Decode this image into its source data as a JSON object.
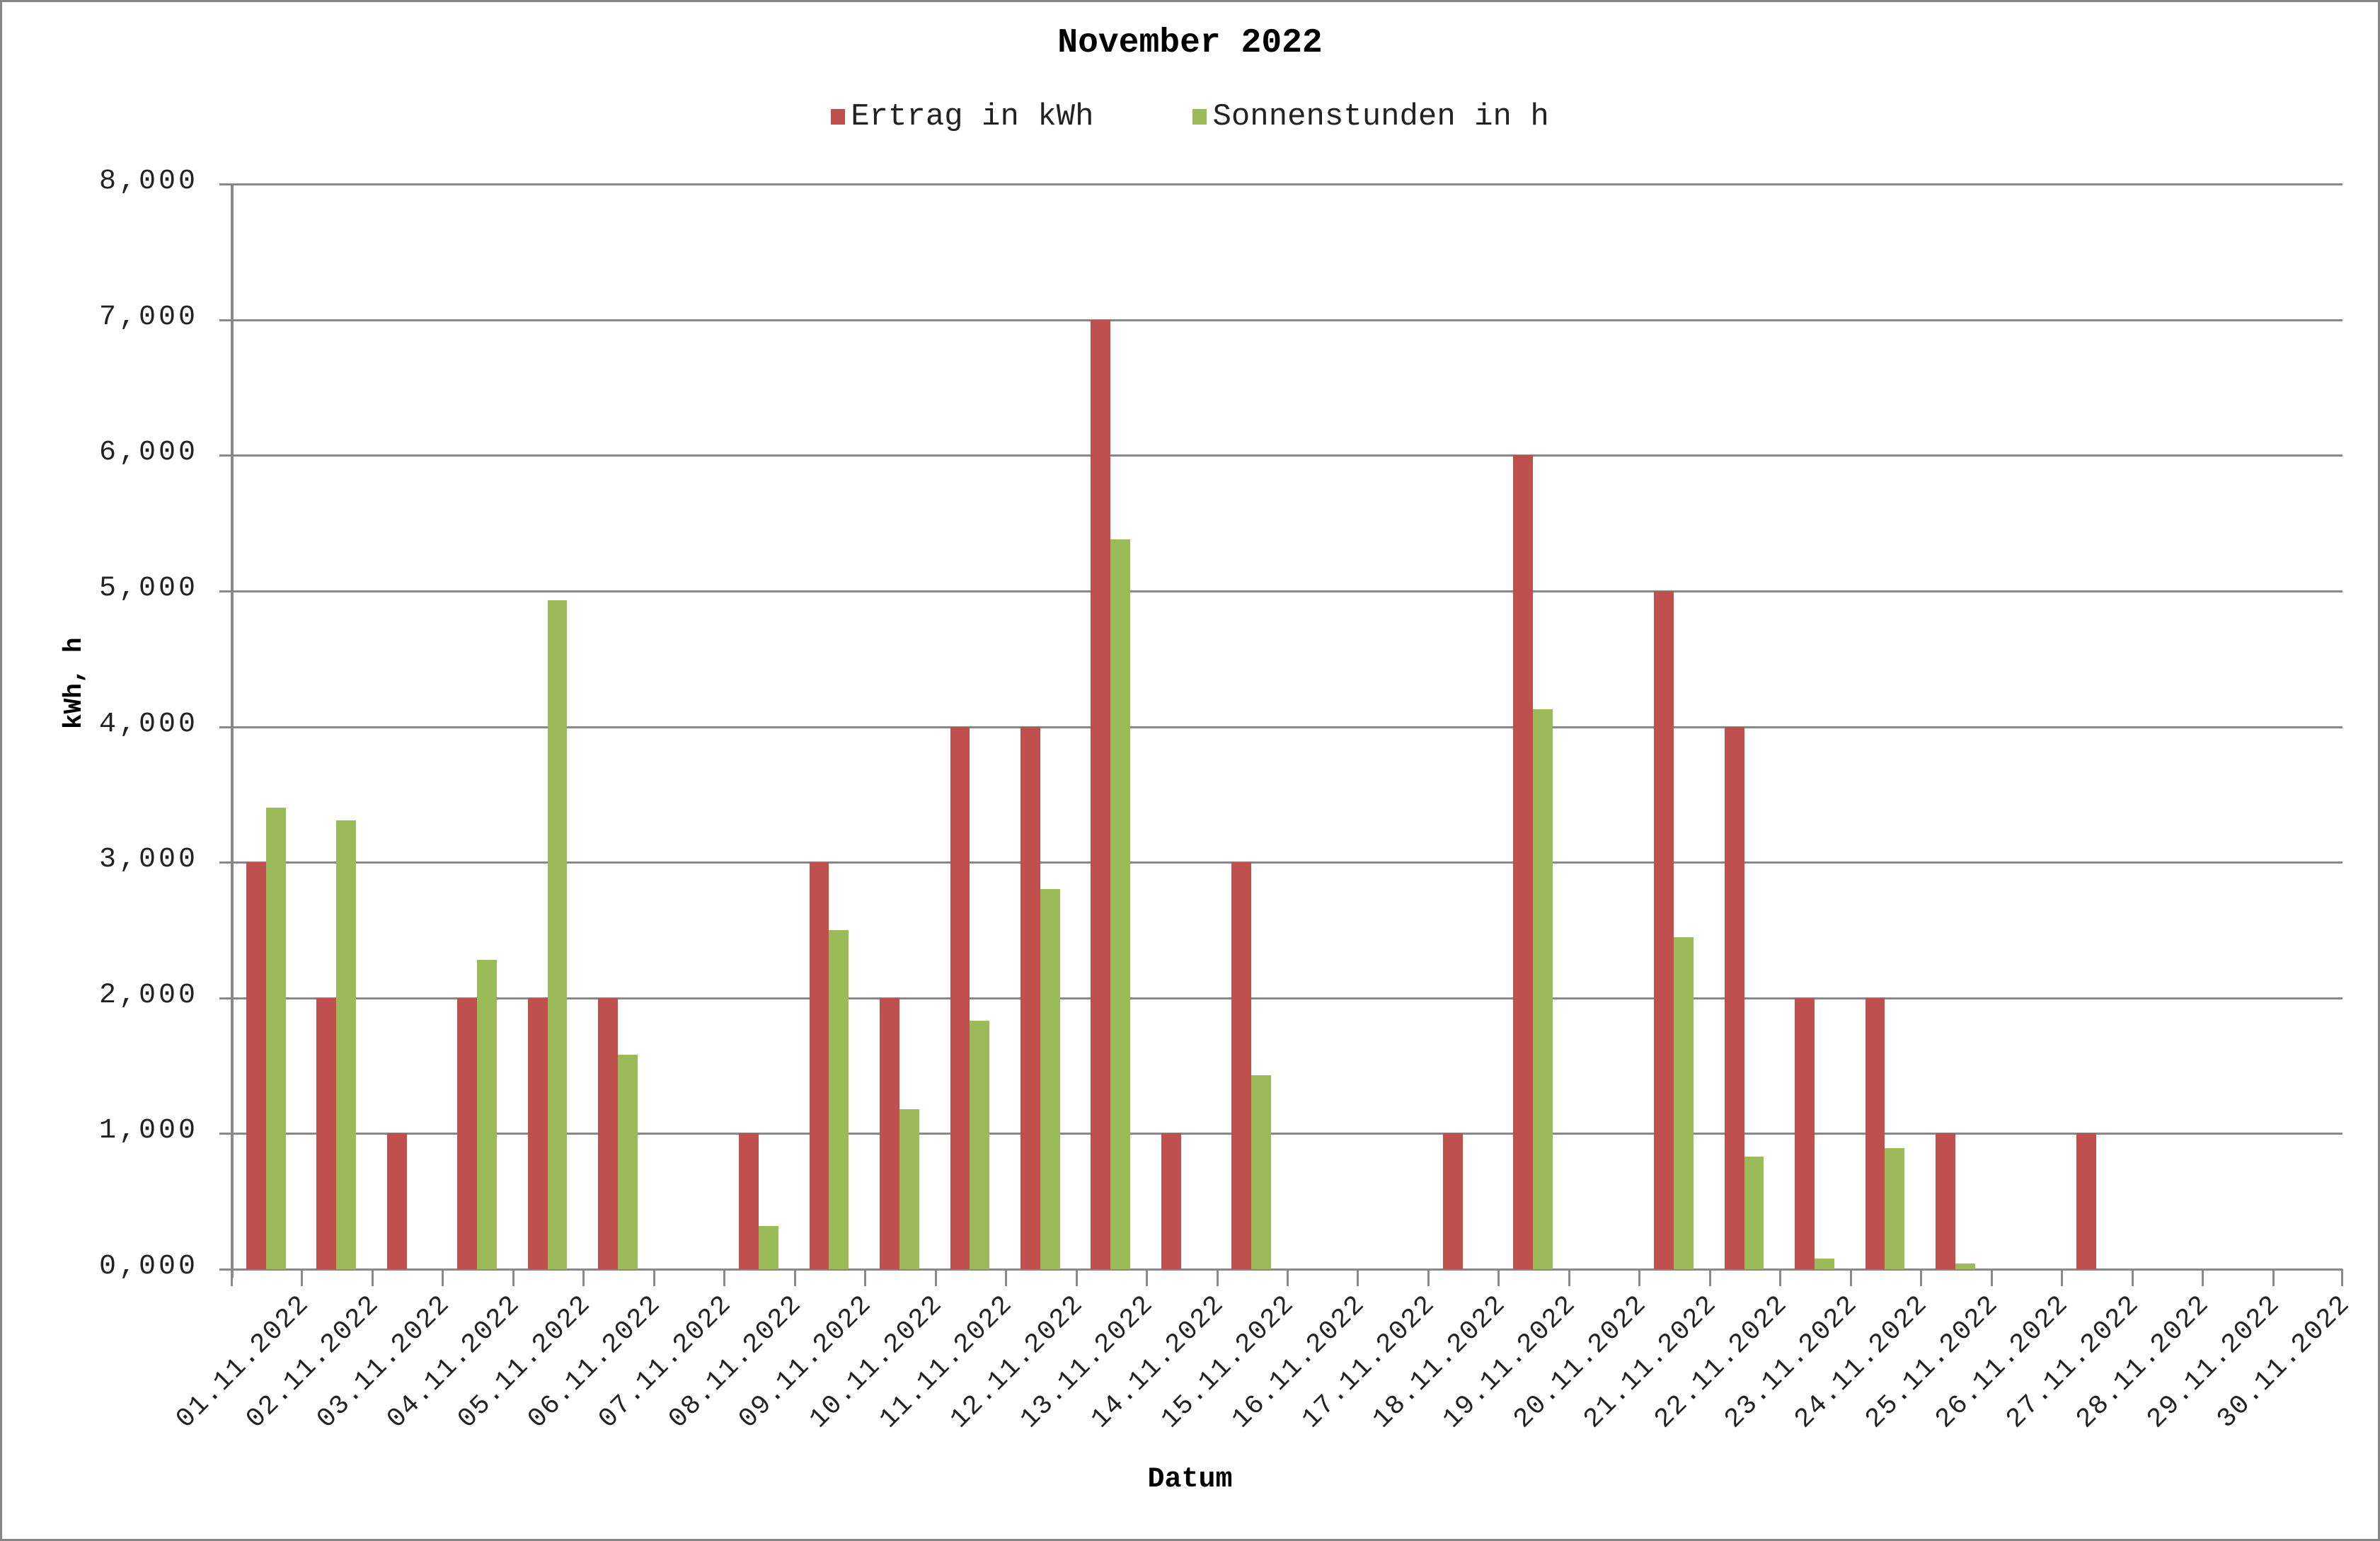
{
  "chart_data": {
    "type": "bar",
    "title": "November 2022",
    "xlabel": "Datum",
    "ylabel": "kWh, h",
    "ylim": [
      0,
      8
    ],
    "yticks": [
      "0,000",
      "1,000",
      "2,000",
      "3,000",
      "4,000",
      "5,000",
      "6,000",
      "7,000",
      "8,000"
    ],
    "grid": true,
    "legend_position": "top",
    "categories": [
      "01.11.2022",
      "02.11.2022",
      "03.11.2022",
      "04.11.2022",
      "05.11.2022",
      "06.11.2022",
      "07.11.2022",
      "08.11.2022",
      "09.11.2022",
      "10.11.2022",
      "11.11.2022",
      "12.11.2022",
      "13.11.2022",
      "14.11.2022",
      "15.11.2022",
      "16.11.2022",
      "17.11.2022",
      "18.11.2022",
      "19.11.2022",
      "20.11.2022",
      "21.11.2022",
      "22.11.2022",
      "23.11.2022",
      "24.11.2022",
      "25.11.2022",
      "26.11.2022",
      "27.11.2022",
      "28.11.2022",
      "29.11.2022",
      "30.11.2022"
    ],
    "series": [
      {
        "name": "Ertrag in kWh",
        "color": "#C0504D",
        "values": [
          3,
          2,
          1,
          2,
          2,
          2,
          0,
          1,
          3,
          2,
          4,
          4,
          7,
          1,
          3,
          0,
          0,
          1,
          6,
          0,
          5,
          4,
          2,
          2,
          1,
          0,
          1,
          0,
          0,
          0
        ]
      },
      {
        "name": "Sonnenstunden in h",
        "color": "#9BBB59",
        "values": [
          3.4,
          3.31,
          0,
          2.28,
          4.93,
          1.58,
          0,
          0.32,
          2.5,
          1.18,
          1.83,
          2.8,
          5.38,
          0,
          1.43,
          0,
          0,
          0,
          4.13,
          0,
          2.45,
          0.83,
          0.08,
          0.89,
          0.04,
          0,
          0,
          0,
          0,
          0
        ]
      }
    ]
  }
}
